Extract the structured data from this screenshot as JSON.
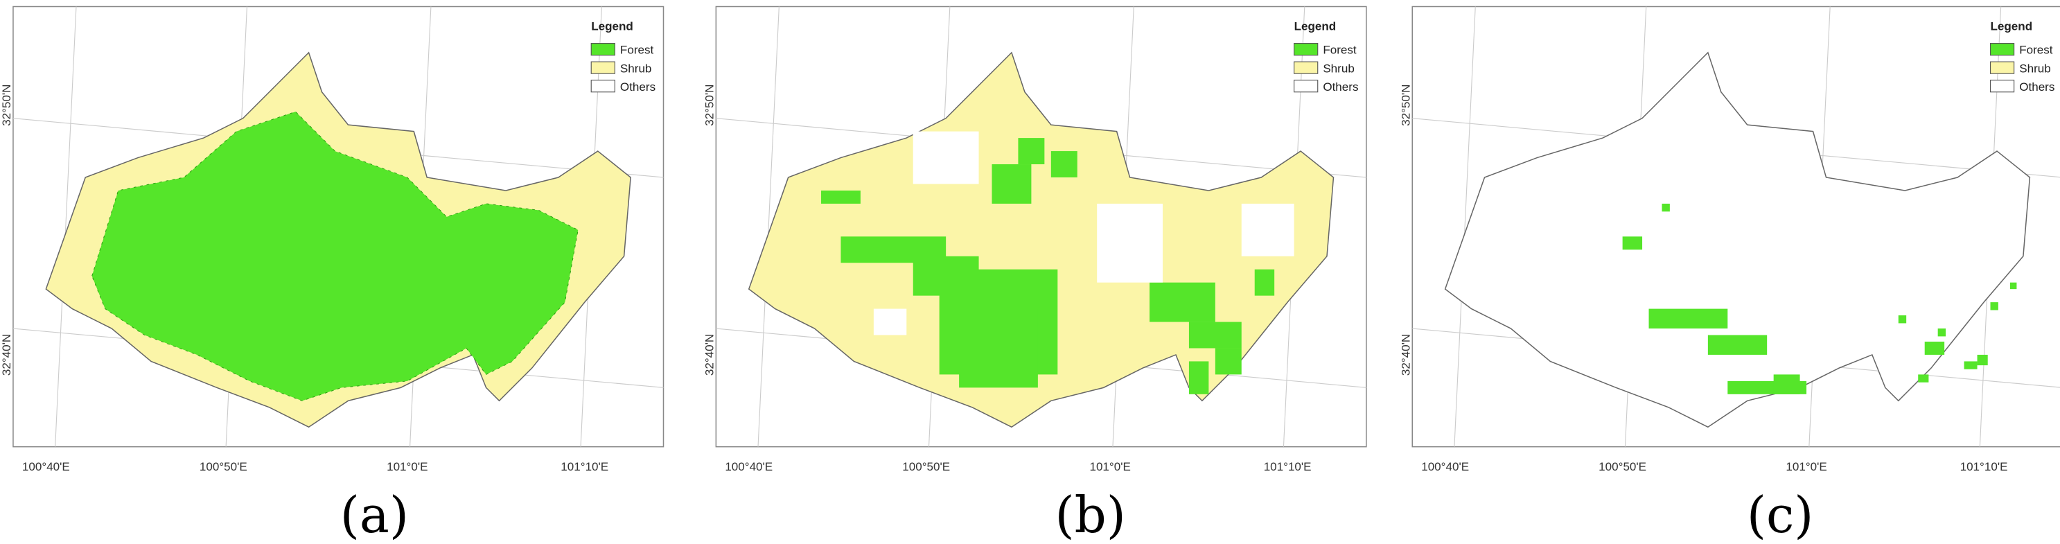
{
  "panels": [
    {
      "caption": "(a)",
      "legend_title": "Legend",
      "legend": [
        {
          "name": "Forest",
          "color": "#55e52a"
        },
        {
          "name": "Shrub",
          "color": "#fbf5a8"
        },
        {
          "name": "Others",
          "color": "#ffffff"
        }
      ],
      "lat_labels": [
        "32°50'N",
        "32°40'N"
      ],
      "lon_labels": [
        "100°40'E",
        "100°50'E",
        "101°0'E",
        "101°10'E"
      ]
    },
    {
      "caption": "(b)",
      "legend_title": "Legend",
      "legend": [
        {
          "name": "Forest",
          "color": "#55e52a"
        },
        {
          "name": "Shrub",
          "color": "#fbf5a8"
        },
        {
          "name": "Others",
          "color": "#ffffff"
        }
      ],
      "lat_labels": [
        "32°50'N",
        "32°40'N"
      ],
      "lon_labels": [
        "100°40'E",
        "100°50'E",
        "101°0'E",
        "101°10'E"
      ]
    },
    {
      "caption": "(c)",
      "legend_title": "Legend",
      "legend": [
        {
          "name": "Forest",
          "color": "#55e52a"
        },
        {
          "name": "Shrub",
          "color": "#fbf5a8"
        },
        {
          "name": "Others",
          "color": "#ffffff"
        }
      ],
      "lat_labels": [
        "32°50'N",
        "32°40'N"
      ],
      "lon_labels": [
        "100°40'E",
        "100°50'E",
        "101°0'E",
        "101°10'E"
      ]
    }
  ]
}
